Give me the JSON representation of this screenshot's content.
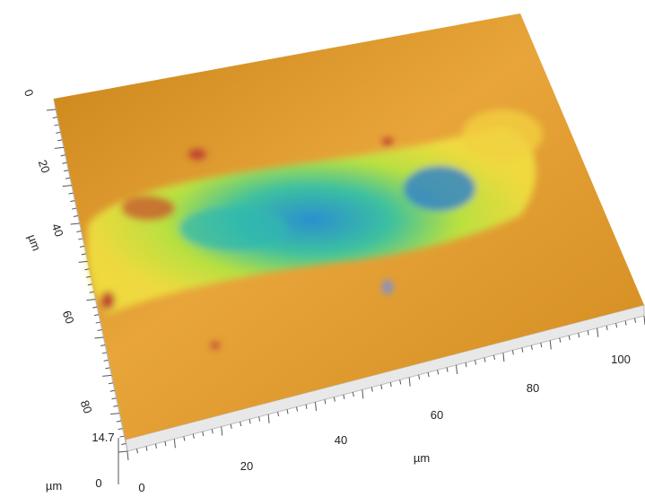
{
  "y_axis": {
    "ticks": [
      "0",
      "20",
      "40",
      "60",
      "80"
    ],
    "unit": "µm"
  },
  "x_axis": {
    "ticks": [
      "0",
      "20",
      "40",
      "60",
      "80",
      "100"
    ],
    "unit": "µm"
  },
  "z_axis": {
    "ticks": [
      "14.7",
      "0"
    ],
    "unit": "µm"
  }
}
